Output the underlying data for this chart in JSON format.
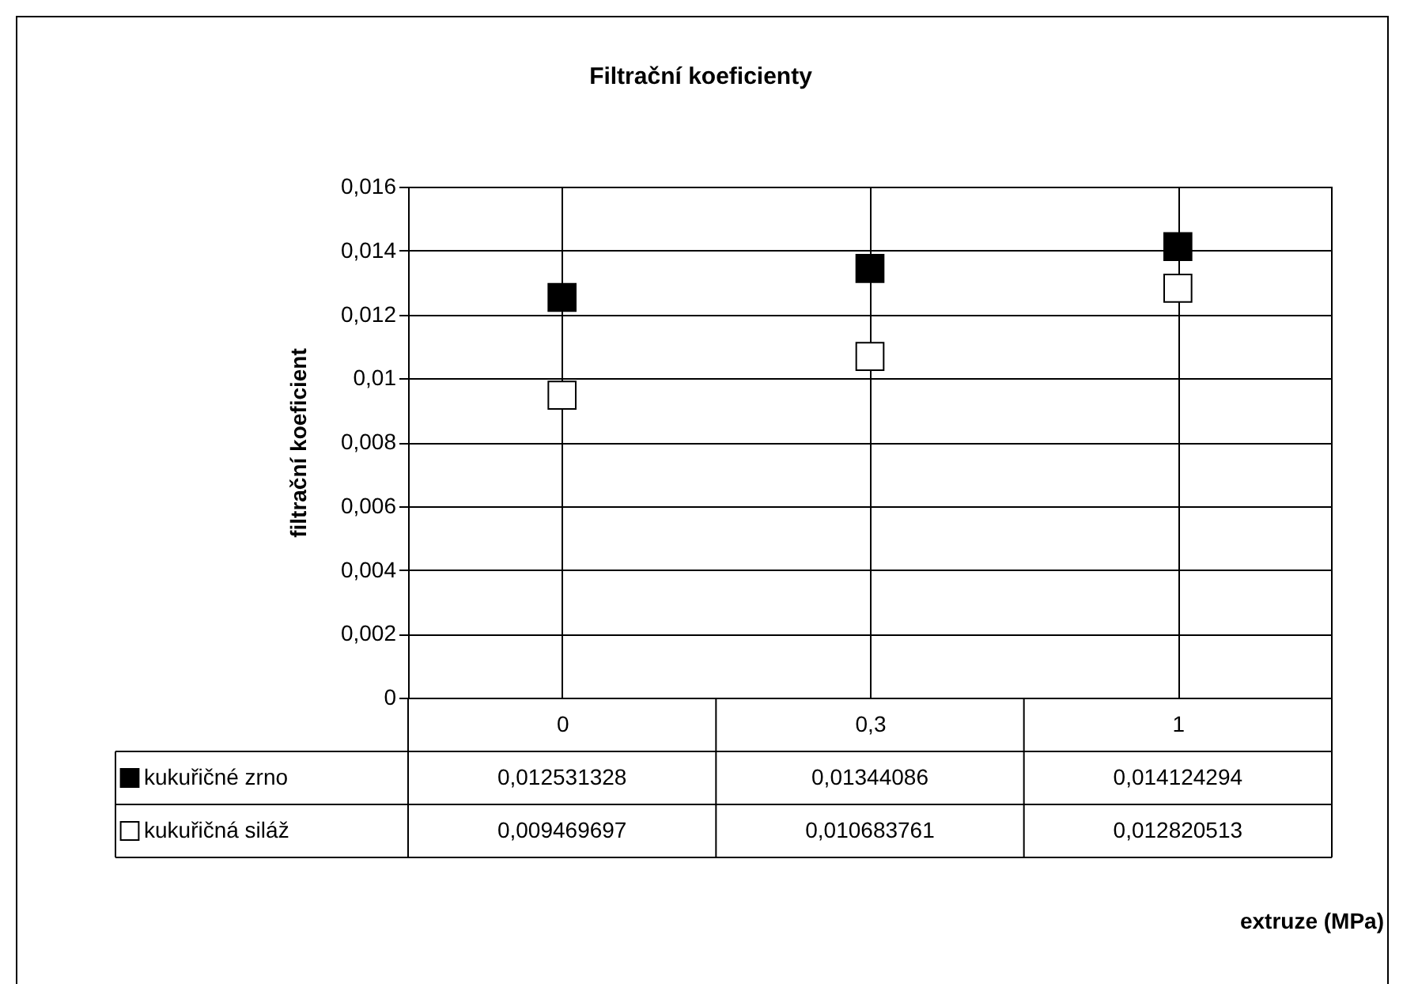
{
  "chart_data": {
    "type": "scatter",
    "title": "Filtrační koeficienty",
    "annotations": [
      "extruze (MPa)"
    ],
    "ylabel": "filtrační koeficient",
    "categories": [
      "0",
      "0,3",
      "1"
    ],
    "series": [
      {
        "name": "kukuřičné zrno",
        "color": "#000000",
        "values": [
          0.012531328,
          0.01344086,
          0.014124294
        ],
        "value_labels": [
          "0,012531328",
          "0,01344086",
          "0,014124294"
        ]
      },
      {
        "name": "kukuřičná siláž",
        "color": "#ffffff",
        "values": [
          0.009469697,
          0.010683761,
          0.012820513
        ],
        "value_labels": [
          "0,009469697",
          "0,010683761",
          "0,012820513"
        ]
      }
    ],
    "ylim": [
      0,
      0.016
    ],
    "yticks": [
      0,
      {
        "value": 0.002,
        "label": "0,002"
      },
      {
        "value": 0.004,
        "label": "0,004"
      },
      {
        "value": 0.006,
        "label": "0,006"
      },
      {
        "value": 0.008,
        "label": "0,008"
      },
      {
        "value": 0.01,
        "label": "0,01"
      },
      {
        "value": 0.012,
        "label": "0,012"
      },
      {
        "value": 0.014,
        "label": "0,014"
      },
      {
        "value": 0.016,
        "label": "0,016"
      }
    ],
    "grid": true,
    "legend": "bottom",
    "marker": "square"
  }
}
